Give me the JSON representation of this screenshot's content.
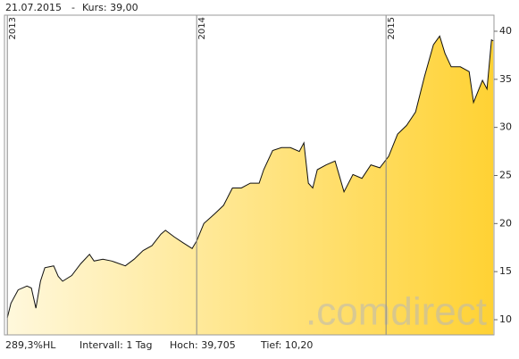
{
  "header": {
    "date": "21.07.2015",
    "separator": "-",
    "price": "Kurs: 39,00"
  },
  "footer": {
    "hl": "289,3%HL",
    "interval": "Intervall: 1 Tag",
    "high": "Hoch: 39,705",
    "low": "Tief: 10,20"
  },
  "chart_data": {
    "type": "area",
    "watermark": ".comdirect",
    "x": [
      2013.0,
      2013.019,
      2013.057,
      2013.104,
      2013.127,
      2013.151,
      2013.175,
      2013.198,
      2013.245,
      2013.269,
      2013.292,
      2013.34,
      2013.387,
      2013.434,
      2013.458,
      2013.505,
      2013.552,
      2013.623,
      2013.67,
      2013.717,
      2013.764,
      2013.811,
      2013.835,
      2013.882,
      2013.929,
      2013.976,
      2014.0,
      2014.038,
      2014.094,
      2014.142,
      2014.189,
      2014.236,
      2014.283,
      2014.33,
      2014.354,
      2014.401,
      2014.448,
      2014.495,
      2014.542,
      2014.566,
      2014.59,
      2014.613,
      2014.637,
      2014.684,
      2014.731,
      2014.778,
      2014.825,
      2014.873,
      2014.92,
      2014.967,
      2015.014,
      2015.061,
      2015.108,
      2015.156,
      2015.203,
      2015.25,
      2015.283,
      2015.311,
      2015.344,
      2015.392,
      2015.439,
      2015.462,
      2015.509,
      2015.533,
      2015.557,
      2015.566
    ],
    "series": [
      {
        "name": "Kurs",
        "color": "#111111",
        "fill_from": "#fff8dc",
        "fill_to": "#ffd234",
        "values": [
          10.2,
          11.7,
          13.1,
          13.5,
          13.3,
          11.2,
          14.0,
          15.4,
          15.6,
          14.5,
          14.0,
          14.6,
          15.8,
          16.8,
          16.1,
          16.3,
          16.1,
          15.6,
          16.3,
          17.2,
          17.7,
          18.9,
          19.3,
          18.6,
          18.0,
          17.4,
          18.2,
          20.0,
          21.0,
          21.9,
          23.7,
          23.7,
          24.2,
          24.2,
          25.6,
          27.6,
          27.9,
          27.9,
          27.5,
          28.4,
          24.2,
          23.7,
          25.6,
          26.1,
          26.5,
          23.3,
          25.1,
          24.7,
          26.1,
          25.8,
          27.0,
          29.3,
          30.2,
          31.6,
          35.3,
          38.6,
          39.5,
          37.7,
          36.3,
          36.3,
          35.8,
          32.6,
          34.9,
          34.0,
          39.1,
          39.0
        ]
      }
    ],
    "xlim": [
      2012.985,
      2015.57
    ],
    "xticks": [
      2013,
      2014,
      2015
    ],
    "ylim": [
      8.42,
      41.67
    ],
    "yticks": [
      10,
      15,
      20,
      25,
      30,
      35,
      40
    ],
    "grid_x": true
  }
}
